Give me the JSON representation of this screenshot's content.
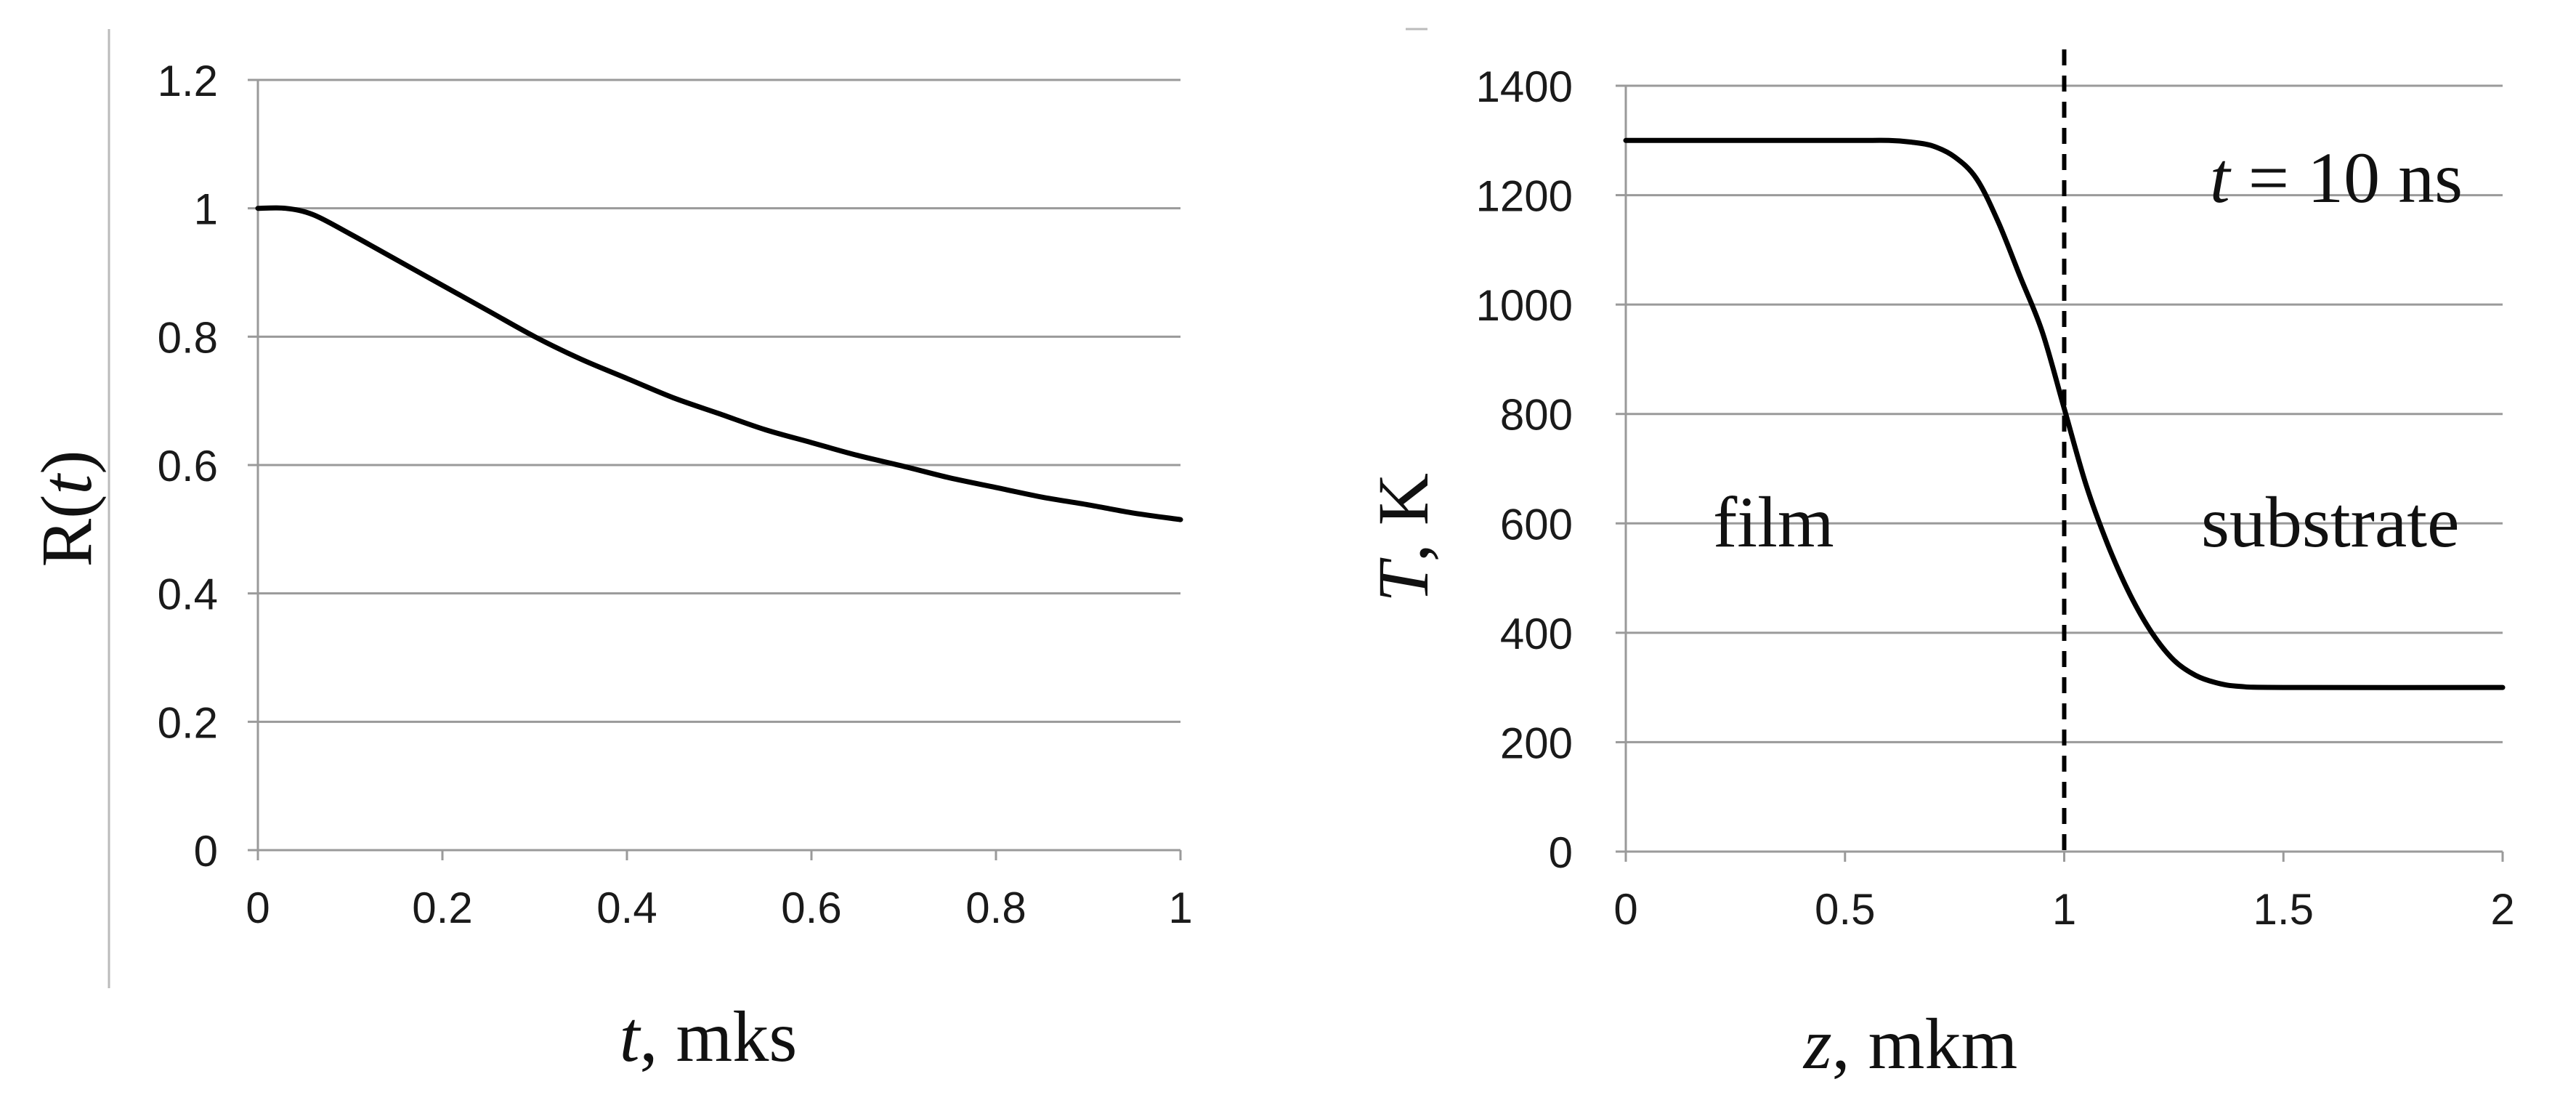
{
  "chart_data": [
    {
      "type": "line",
      "title": "",
      "xlabel": "t, mks",
      "ylabel": "R(t)",
      "xlim": [
        0,
        1
      ],
      "ylim": [
        0,
        1.2
      ],
      "xticks": [
        0,
        0.2,
        0.4,
        0.6,
        0.8,
        1
      ],
      "yticks": [
        0,
        0.2,
        0.4,
        0.6,
        0.8,
        1,
        1.2
      ],
      "xtick_labels": [
        "0",
        "0.2",
        "0.4",
        "0.6",
        "0.8",
        "1"
      ],
      "ytick_labels": [
        "0",
        "0.2",
        "0.4",
        "0.6",
        "0.8",
        "1",
        "1.2"
      ],
      "grid": "horizontal",
      "series": [
        {
          "color": "#000000",
          "x": [
            0,
            0.03,
            0.06,
            0.1,
            0.15,
            0.2,
            0.25,
            0.3,
            0.35,
            0.4,
            0.45,
            0.5,
            0.55,
            0.6,
            0.65,
            0.7,
            0.75,
            0.8,
            0.85,
            0.9,
            0.95,
            1.0
          ],
          "y": [
            1.0,
            1.0,
            0.99,
            0.96,
            0.92,
            0.88,
            0.84,
            0.8,
            0.765,
            0.735,
            0.705,
            0.68,
            0.655,
            0.635,
            0.615,
            0.598,
            0.58,
            0.565,
            0.55,
            0.538,
            0.525,
            0.515
          ]
        }
      ]
    },
    {
      "type": "line",
      "title": "",
      "xlabel": "z, mkm",
      "ylabel": "T, K",
      "xlim": [
        0,
        2
      ],
      "ylim": [
        0,
        1400
      ],
      "xticks": [
        0,
        0.5,
        1,
        1.5,
        2
      ],
      "yticks": [
        0,
        200,
        400,
        600,
        800,
        1000,
        1200,
        1400
      ],
      "xtick_labels": [
        "0",
        "0.5",
        "1",
        "1.5",
        "2"
      ],
      "ytick_labels": [
        "0",
        "200",
        "400",
        "600",
        "800",
        "1000",
        "1200",
        "1400"
      ],
      "grid": "horizontal",
      "vline": {
        "x": 1,
        "style": "dashed"
      },
      "annotations": [
        {
          "text_italic": "t",
          "text_rest": " = 10 ns"
        },
        {
          "text": "film"
        },
        {
          "text": "substrate"
        }
      ],
      "series": [
        {
          "color": "#000000",
          "x": [
            0,
            0.5,
            0.6,
            0.65,
            0.7,
            0.75,
            0.8,
            0.85,
            0.9,
            0.95,
            1.0,
            1.05,
            1.1,
            1.15,
            1.2,
            1.25,
            1.3,
            1.35,
            1.4,
            1.5,
            2.0
          ],
          "y": [
            1300,
            1300,
            1300,
            1297,
            1290,
            1270,
            1230,
            1150,
            1050,
            950,
            810,
            670,
            560,
            470,
            400,
            350,
            322,
            308,
            302,
            300,
            300
          ]
        }
      ]
    }
  ]
}
